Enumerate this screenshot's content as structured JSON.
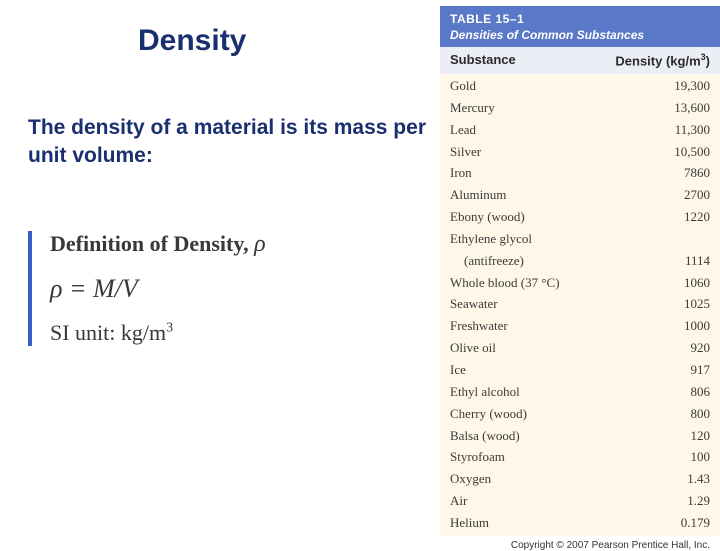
{
  "title": "Density",
  "intro": "The density of a material is its mass per unit volume:",
  "definition": {
    "heading_prefix": "Definition of Density, ",
    "symbol": "ρ",
    "equation": "ρ = M/V",
    "si_label": "SI unit: kg/m",
    "si_exponent": "3"
  },
  "table": {
    "number": "TABLE 15–1",
    "subtitle": "Densities of Common Substances",
    "col1": "Substance",
    "col2_prefix": "Density (kg/m",
    "col2_exp": "3",
    "col2_suffix": ")",
    "rows": [
      {
        "name": "Gold",
        "value": "19,300"
      },
      {
        "name": "Mercury",
        "value": "13,600"
      },
      {
        "name": "Lead",
        "value": "11,300"
      },
      {
        "name": "Silver",
        "value": "10,500"
      },
      {
        "name": "Iron",
        "value": "7860"
      },
      {
        "name": "Aluminum",
        "value": "2700"
      },
      {
        "name": "Ebony (wood)",
        "value": "1220"
      },
      {
        "name": "Ethylene glycol",
        "value": ""
      },
      {
        "name": "(antifreeze)",
        "value": "1114",
        "indent": true
      },
      {
        "name": "Whole blood (37 °C)",
        "value": "1060"
      },
      {
        "name": "Seawater",
        "value": "1025"
      },
      {
        "name": "Freshwater",
        "value": "1000"
      },
      {
        "name": "Olive oil",
        "value": "920"
      },
      {
        "name": "Ice",
        "value": "917"
      },
      {
        "name": "Ethyl alcohol",
        "value": "806"
      },
      {
        "name": "Cherry (wood)",
        "value": "800"
      },
      {
        "name": "Balsa (wood)",
        "value": "120"
      },
      {
        "name": "Styrofoam",
        "value": "100"
      },
      {
        "name": "Oxygen",
        "value": "1.43"
      },
      {
        "name": "Air",
        "value": "1.29"
      },
      {
        "name": "Helium",
        "value": "0.179"
      }
    ]
  },
  "copyright": "Copyright © 2007 Pearson Prentice Hall, Inc."
}
